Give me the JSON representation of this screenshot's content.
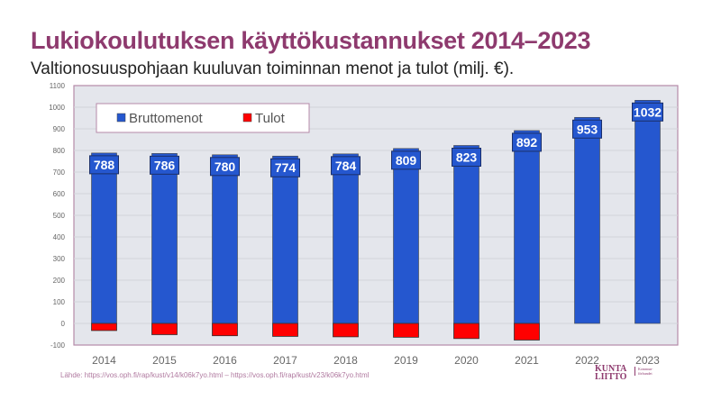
{
  "title": "Lukiokoulutuksen käyttökustannukset 2014–2023",
  "subtitle": "Valtionosuuspohjaan kuuluvan toiminnan menot ja tulot (milj. €).",
  "source": "Lähde: https://vos.oph.fi/rap/kust/v14/k06k7yo.html  –  https://vos.oph.fi/rap/kust/v23/k06k7yo.html",
  "logo": {
    "line1": "KUNTA",
    "line2": "LIITTO",
    "tag": "Kommun-förbundet"
  },
  "chart_data": {
    "type": "bar",
    "title": "Lukiokoulutuksen käyttökustannukset 2014–2023",
    "xlabel": "",
    "ylabel": "milj. €",
    "ylim": [
      -100,
      1100
    ],
    "yticks": [
      -100,
      0,
      100,
      200,
      300,
      400,
      500,
      600,
      700,
      800,
      900,
      1000,
      1100
    ],
    "grid": true,
    "legend": "top-left",
    "categories": [
      "2014",
      "2015",
      "2016",
      "2017",
      "2018",
      "2019",
      "2020",
      "2021",
      "2022",
      "2023"
    ],
    "series": [
      {
        "name": "Bruttomenot",
        "color": "#2557cf",
        "values": [
          788,
          786,
          780,
          774,
          784,
          809,
          823,
          892,
          953,
          1032
        ],
        "labels": [
          "788",
          "786",
          "780",
          "774",
          "784",
          "809",
          "823",
          "892",
          "953",
          "1032"
        ]
      },
      {
        "name": "Tulot",
        "color": "#ff0000",
        "values": [
          -33,
          -52,
          -57,
          -60,
          -62,
          -64,
          -70,
          -77,
          0,
          0
        ]
      }
    ]
  }
}
